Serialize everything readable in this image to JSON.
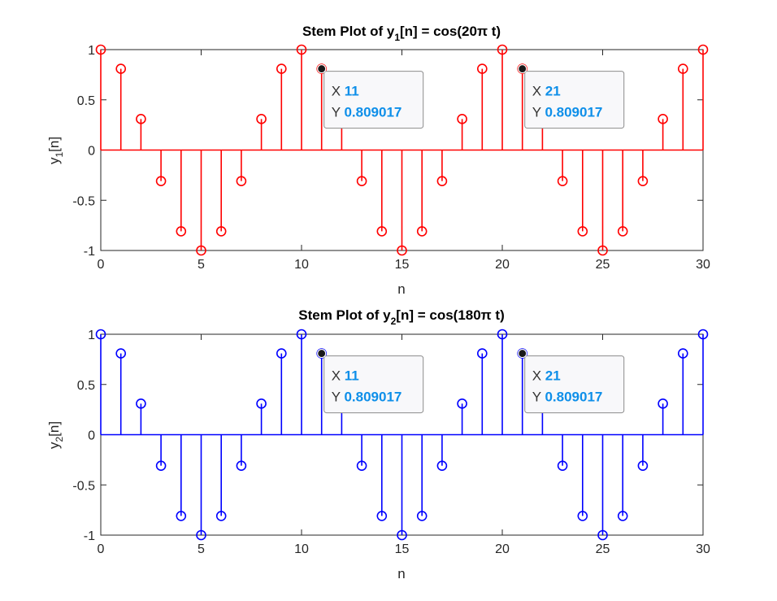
{
  "chart_data": [
    {
      "type": "stem",
      "title_prefix": "Stem Plot of y",
      "title_sub": "1",
      "title_suffix": "[n] = cos(20π t)",
      "xlabel": "n",
      "ylabel_prefix": "y",
      "ylabel_sub": "1",
      "ylabel_suffix": "[n]",
      "xlim": [
        0,
        30
      ],
      "ylim": [
        -1,
        1
      ],
      "xticks": [
        "0",
        "5",
        "10",
        "15",
        "20",
        "25",
        "30"
      ],
      "yticks": [
        "-1",
        "-0.5",
        "0",
        "0.5",
        "1"
      ],
      "color": "#ff0000",
      "grid": false,
      "x": [
        0,
        1,
        2,
        3,
        4,
        5,
        6,
        7,
        8,
        9,
        10,
        11,
        12,
        13,
        14,
        15,
        16,
        17,
        18,
        19,
        20,
        21,
        22,
        23,
        24,
        25,
        26,
        27,
        28,
        29,
        30
      ],
      "values": [
        1,
        0.809,
        0.309,
        -0.309,
        -0.809,
        -1,
        -0.809,
        -0.309,
        0.309,
        0.809,
        1,
        0.809,
        0.309,
        -0.309,
        -0.809,
        -1,
        -0.809,
        -0.309,
        0.309,
        0.809,
        1,
        0.809,
        0.309,
        -0.309,
        -0.809,
        -1,
        -0.809,
        -0.309,
        0.309,
        0.809,
        1
      ],
      "datatips": [
        {
          "x_label": "X",
          "x_value": "11",
          "y_label": "Y",
          "y_value": "0.809017"
        },
        {
          "x_label": "X",
          "x_value": "21",
          "y_label": "Y",
          "y_value": "0.809017"
        }
      ]
    },
    {
      "type": "stem",
      "title_prefix": "Stem Plot of y",
      "title_sub": "2",
      "title_suffix": "[n] = cos(180π t)",
      "xlabel": "n",
      "ylabel_prefix": "y",
      "ylabel_sub": "2",
      "ylabel_suffix": "[n]",
      "xlim": [
        0,
        30
      ],
      "ylim": [
        -1,
        1
      ],
      "xticks": [
        "0",
        "5",
        "10",
        "15",
        "20",
        "25",
        "30"
      ],
      "yticks": [
        "-1",
        "-0.5",
        "0",
        "0.5",
        "1"
      ],
      "color": "#0000ff",
      "grid": false,
      "x": [
        0,
        1,
        2,
        3,
        4,
        5,
        6,
        7,
        8,
        9,
        10,
        11,
        12,
        13,
        14,
        15,
        16,
        17,
        18,
        19,
        20,
        21,
        22,
        23,
        24,
        25,
        26,
        27,
        28,
        29,
        30
      ],
      "values": [
        1,
        0.809,
        0.309,
        -0.309,
        -0.809,
        -1,
        -0.809,
        -0.309,
        0.309,
        0.809,
        1,
        0.809,
        0.309,
        -0.309,
        -0.809,
        -1,
        -0.809,
        -0.309,
        0.309,
        0.809,
        1,
        0.809,
        0.309,
        -0.309,
        -0.809,
        -1,
        -0.809,
        -0.309,
        0.309,
        0.809,
        1
      ],
      "datatips": [
        {
          "x_label": "X",
          "x_value": "11",
          "y_label": "Y",
          "y_value": "0.809017"
        },
        {
          "x_label": "X",
          "x_value": "21",
          "y_label": "Y",
          "y_value": "0.809017"
        }
      ]
    }
  ]
}
